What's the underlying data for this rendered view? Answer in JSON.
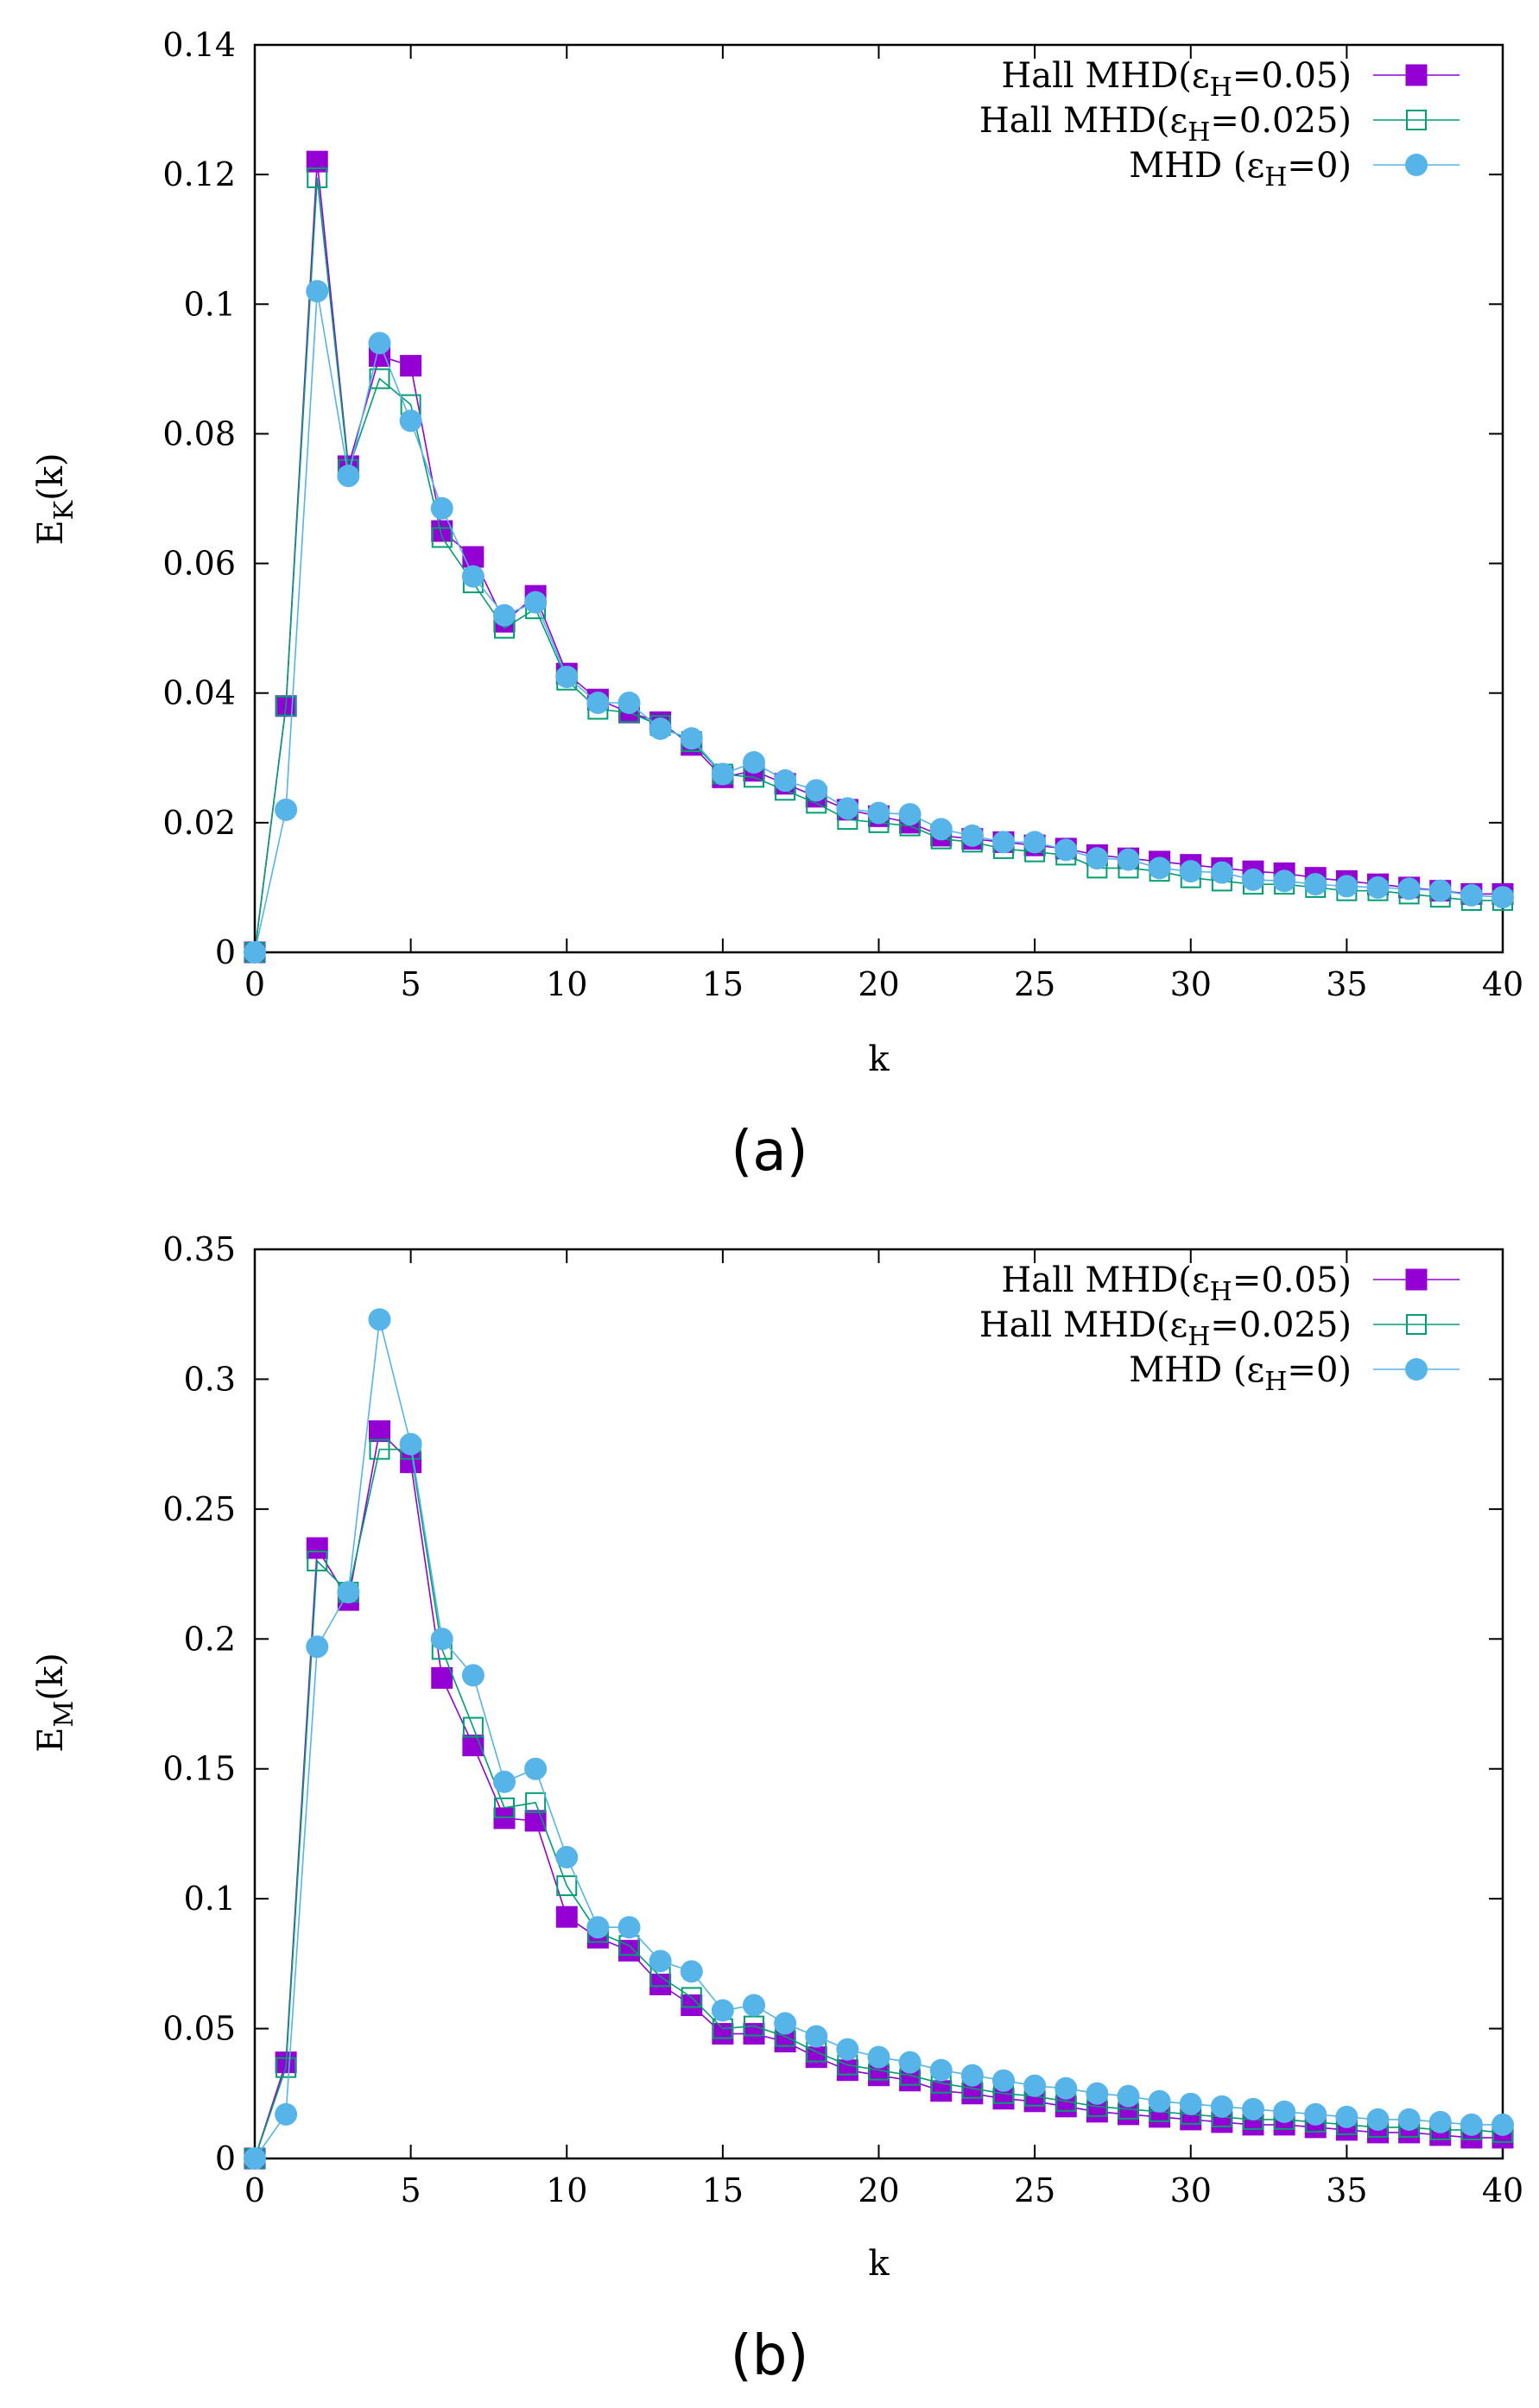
{
  "figure": {
    "panel_labels": [
      "(a)",
      "(b)"
    ]
  },
  "colors": {
    "hall_005": "#9400d3",
    "hall_0025": "#009e73",
    "mhd": "#56b4e9"
  },
  "chart_data": [
    {
      "type": "line",
      "panel": "(a)",
      "title": "",
      "xlabel": "k",
      "ylabel_main": "E",
      "ylabel_sub": "K",
      "ylabel_rest": "(k)",
      "xlim": [
        0,
        40
      ],
      "ylim": [
        0,
        0.14
      ],
      "xticks": [
        0,
        5,
        10,
        15,
        20,
        25,
        30,
        35,
        40
      ],
      "xtick_labels": [
        "0",
        "5",
        "10",
        "15",
        "20",
        "25",
        "30",
        "35",
        "40"
      ],
      "yticks": [
        0,
        0.02,
        0.04,
        0.06,
        0.08,
        0.1,
        0.12,
        0.14
      ],
      "ytick_labels": [
        "0",
        "0.02",
        "0.04",
        "0.06",
        "0.08",
        "0.1",
        "0.12",
        "0.14"
      ],
      "legend_position": "top-right",
      "x": [
        0,
        1,
        2,
        3,
        4,
        5,
        6,
        7,
        8,
        9,
        10,
        11,
        12,
        13,
        14,
        15,
        16,
        17,
        18,
        19,
        20,
        21,
        22,
        23,
        24,
        25,
        26,
        27,
        28,
        29,
        30,
        31,
        32,
        33,
        34,
        35,
        36,
        37,
        38,
        39,
        40
      ],
      "series": [
        {
          "name_main": "Hall MHD(ε",
          "name_sub": "H",
          "name_rest": "=0.05)",
          "marker": "filled-square",
          "color_key": "hall_005",
          "values": [
            0,
            0.038,
            0.122,
            0.075,
            0.092,
            0.0905,
            0.065,
            0.061,
            0.051,
            0.055,
            0.043,
            0.039,
            0.037,
            0.0355,
            0.032,
            0.027,
            0.028,
            0.026,
            0.024,
            0.022,
            0.021,
            0.02,
            0.018,
            0.0175,
            0.017,
            0.0165,
            0.016,
            0.015,
            0.0145,
            0.014,
            0.0135,
            0.013,
            0.0125,
            0.0122,
            0.0115,
            0.011,
            0.0105,
            0.01,
            0.0095,
            0.009,
            0.009
          ]
        },
        {
          "name_main": "Hall MHD(ε",
          "name_sub": "H",
          "name_rest": "=0.025)",
          "marker": "open-square",
          "color_key": "hall_0025",
          "values": [
            0,
            0.038,
            0.1195,
            0.0745,
            0.0885,
            0.0845,
            0.064,
            0.057,
            0.05,
            0.053,
            0.042,
            0.0375,
            0.037,
            0.035,
            0.0325,
            0.0275,
            0.027,
            0.025,
            0.023,
            0.0205,
            0.02,
            0.0195,
            0.0175,
            0.017,
            0.016,
            0.0155,
            0.015,
            0.013,
            0.013,
            0.0125,
            0.0115,
            0.011,
            0.0105,
            0.0105,
            0.01,
            0.0095,
            0.0095,
            0.009,
            0.0085,
            0.008,
            0.008
          ]
        },
        {
          "name_main": "MHD (ε",
          "name_sub": "H",
          "name_rest": "=0)",
          "marker": "filled-circle",
          "color_key": "mhd",
          "values": [
            0,
            0.022,
            0.102,
            0.0735,
            0.094,
            0.082,
            0.0685,
            0.058,
            0.052,
            0.054,
            0.0425,
            0.0385,
            0.0385,
            0.0345,
            0.033,
            0.0275,
            0.0293,
            0.0265,
            0.025,
            0.0222,
            0.0215,
            0.0213,
            0.019,
            0.018,
            0.017,
            0.017,
            0.0158,
            0.0145,
            0.0143,
            0.013,
            0.0125,
            0.0123,
            0.0112,
            0.011,
            0.0105,
            0.0102,
            0.01,
            0.0098,
            0.0095,
            0.0088,
            0.0085
          ]
        }
      ]
    },
    {
      "type": "line",
      "panel": "(b)",
      "title": "",
      "xlabel": "k",
      "ylabel_main": "E",
      "ylabel_sub": "M",
      "ylabel_rest": "(k)",
      "xlim": [
        0,
        40
      ],
      "ylim": [
        0,
        0.35
      ],
      "xticks": [
        0,
        5,
        10,
        15,
        20,
        25,
        30,
        35,
        40
      ],
      "xtick_labels": [
        "0",
        "5",
        "10",
        "15",
        "20",
        "25",
        "30",
        "35",
        "40"
      ],
      "yticks": [
        0,
        0.05,
        0.1,
        0.15,
        0.2,
        0.25,
        0.3,
        0.35
      ],
      "ytick_labels": [
        "0",
        "0.05",
        "0.1",
        "0.15",
        "0.2",
        "0.25",
        "0.3",
        "0.35"
      ],
      "legend_position": "top-right",
      "x": [
        0,
        1,
        2,
        3,
        4,
        5,
        6,
        7,
        8,
        9,
        10,
        11,
        12,
        13,
        14,
        15,
        16,
        17,
        18,
        19,
        20,
        21,
        22,
        23,
        24,
        25,
        26,
        27,
        28,
        29,
        30,
        31,
        32,
        33,
        34,
        35,
        36,
        37,
        38,
        39,
        40
      ],
      "series": [
        {
          "name_main": "Hall MHD(ε",
          "name_sub": "H",
          "name_rest": "=0.05)",
          "marker": "filled-square",
          "color_key": "hall_005",
          "values": [
            0,
            0.037,
            0.235,
            0.215,
            0.28,
            0.268,
            0.185,
            0.159,
            0.131,
            0.13,
            0.093,
            0.085,
            0.08,
            0.067,
            0.059,
            0.048,
            0.048,
            0.045,
            0.039,
            0.034,
            0.032,
            0.03,
            0.026,
            0.025,
            0.023,
            0.022,
            0.02,
            0.018,
            0.017,
            0.016,
            0.015,
            0.014,
            0.013,
            0.013,
            0.012,
            0.011,
            0.01,
            0.01,
            0.009,
            0.008,
            0.008
          ]
        },
        {
          "name_main": "Hall MHD(ε",
          "name_sub": "H",
          "name_rest": "=0.025)",
          "marker": "open-square",
          "color_key": "hall_0025",
          "values": [
            0,
            0.035,
            0.23,
            0.218,
            0.273,
            0.273,
            0.196,
            0.166,
            0.135,
            0.137,
            0.105,
            0.087,
            0.082,
            0.07,
            0.062,
            0.05,
            0.051,
            0.047,
            0.041,
            0.036,
            0.034,
            0.032,
            0.029,
            0.027,
            0.025,
            0.024,
            0.022,
            0.02,
            0.019,
            0.018,
            0.017,
            0.016,
            0.015,
            0.015,
            0.014,
            0.013,
            0.012,
            0.012,
            0.011,
            0.011,
            0.01
          ]
        },
        {
          "name_main": "MHD (ε",
          "name_sub": "H",
          "name_rest": "=0)",
          "marker": "filled-circle",
          "color_key": "mhd",
          "values": [
            0,
            0.017,
            0.197,
            0.218,
            0.323,
            0.275,
            0.2,
            0.186,
            0.145,
            0.15,
            0.116,
            0.089,
            0.089,
            0.076,
            0.072,
            0.057,
            0.059,
            0.052,
            0.047,
            0.042,
            0.039,
            0.037,
            0.034,
            0.032,
            0.03,
            0.028,
            0.027,
            0.025,
            0.024,
            0.022,
            0.021,
            0.02,
            0.019,
            0.018,
            0.017,
            0.016,
            0.015,
            0.015,
            0.014,
            0.013,
            0.013
          ]
        }
      ]
    }
  ]
}
